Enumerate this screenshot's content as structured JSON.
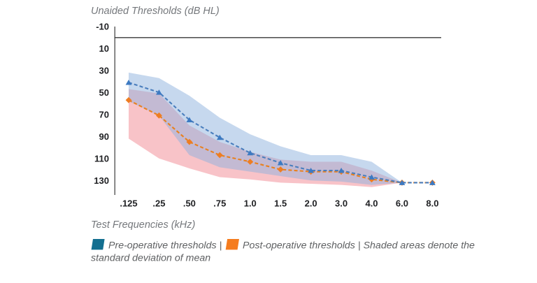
{
  "chart_title": "Unaided Thresholds (dB HL)",
  "x_axis_title": "Test Frequencies (kHz)",
  "legend": {
    "pre_swatch_color": "#136f90",
    "post_swatch_color": "#f57c1e",
    "pre_label": "Pre-operative thresholds",
    "post_label": "Post-operative thresholds",
    "separator": "|",
    "note_line1": "Shaded areas denote the",
    "note_line2": "standard deviation of mean"
  },
  "chart_data": {
    "type": "line",
    "title": "Unaided Thresholds (dB HL)",
    "xlabel": "Test Frequencies (kHz)",
    "ylabel": "Unaided Thresholds (dB HL)",
    "categories": [
      ".125",
      ".25",
      ".50",
      ".75",
      "1.0",
      "1.5",
      "2.0",
      "3.0",
      "4.0",
      "6.0",
      "8.0"
    ],
    "y_ticks": [
      -10,
      10,
      30,
      50,
      70,
      90,
      110,
      130
    ],
    "ylim": [
      -10,
      140
    ],
    "y_reversed": true,
    "grid": false,
    "legend_position": "bottom",
    "series": [
      {
        "name": "Post-operative thresholds",
        "marker": "diamond",
        "line_color": "#e8801f",
        "marker_color": "#ee7d22",
        "dashed": true,
        "values": [
          57,
          71,
          95,
          107,
          113,
          120,
          122,
          122,
          129,
          132,
          132
        ]
      },
      {
        "name": "Pre-operative thresholds",
        "marker": "triangle",
        "line_color": "#4a7ebd",
        "marker_color": "#3d7ac2",
        "dashed": true,
        "values": [
          41,
          50,
          75,
          91,
          105,
          114,
          121,
          121,
          127,
          132,
          132
        ]
      }
    ],
    "bands": [
      {
        "name": "Post-operative mean ± standard deviation",
        "fill_color": "#f2919a",
        "fill_opacity": 0.55,
        "upper": [
          47,
          51,
          80,
          95,
          104,
          111,
          113,
          113,
          121,
          132
        ],
        "lower": [
          92,
          110,
          119,
          127,
          129,
          132,
          133,
          134,
          136,
          132
        ]
      },
      {
        "name": "Pre-operative mean ± standard deviation",
        "fill_color": "#8db1dd",
        "fill_opacity": 0.5,
        "upper": [
          32,
          37,
          53,
          73,
          88,
          99,
          107,
          107,
          113,
          132
        ],
        "lower": [
          58,
          71,
          107,
          118,
          122,
          126,
          130,
          131,
          134,
          132
        ]
      }
    ]
  }
}
